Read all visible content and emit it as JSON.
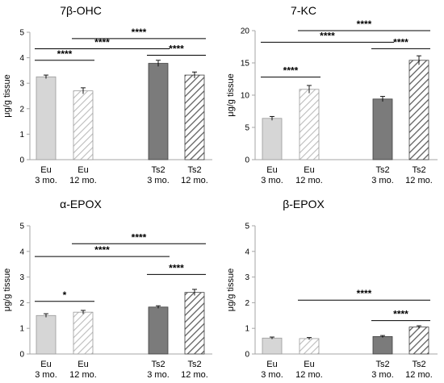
{
  "figure": {
    "bar_fill": "#d6d6d6",
    "bar_fill_ts2": "#7b7b7b",
    "hatch_light": "#bdbdbd",
    "hatch_dark": "#5e5e5e",
    "axis_color": "#a6a6a6",
    "line_color": "#000000"
  },
  "chart_data": [
    {
      "type": "bar",
      "title": "7β-OHC",
      "ylabel": "μg/g tissue",
      "ylim": [
        0,
        5
      ],
      "yticks": [
        "0",
        "1",
        "2",
        "3",
        "4",
        "5"
      ],
      "categories": [
        [
          "Eu",
          "3 mo."
        ],
        [
          "Eu",
          "12 mo."
        ],
        [
          "Ts2",
          "3 mo."
        ],
        [
          "Ts2",
          "12 mo."
        ]
      ],
      "values": [
        3.25,
        2.7,
        3.78,
        3.32
      ],
      "errors": [
        0.07,
        0.12,
        0.12,
        0.12
      ],
      "significance": [
        {
          "from": 0,
          "to": 1,
          "y": 3.9,
          "label": "****"
        },
        {
          "from": 0,
          "to": 2,
          "y": 4.35,
          "label": "****"
        },
        {
          "from": 1,
          "to": 3,
          "y": 4.75,
          "label": "****"
        },
        {
          "from": 2,
          "to": 3,
          "y": 4.1,
          "label": "****"
        }
      ]
    },
    {
      "type": "bar",
      "title": "7-KC",
      "ylabel": "μg/g tissue",
      "ylim": [
        0,
        20
      ],
      "yticks": [
        "0",
        "5",
        "10",
        "15",
        "20"
      ],
      "categories": [
        [
          "Eu",
          "3 mo."
        ],
        [
          "Eu",
          "12 mo."
        ],
        [
          "Ts2",
          "3 mo."
        ],
        [
          "Ts2",
          "12 mo."
        ]
      ],
      "values": [
        6.4,
        10.9,
        9.4,
        15.4
      ],
      "errors": [
        0.3,
        0.6,
        0.4,
        0.7
      ],
      "significance": [
        {
          "from": 0,
          "to": 1,
          "y": 12.8,
          "label": "****"
        },
        {
          "from": 0,
          "to": 2,
          "y": 18.2,
          "label": "****"
        },
        {
          "from": 1,
          "to": 3,
          "y": 20.0,
          "label": "****"
        },
        {
          "from": 2,
          "to": 3,
          "y": 17.2,
          "label": "****"
        }
      ]
    },
    {
      "type": "bar",
      "title": "α-EPOX",
      "ylabel": "μg/g tissue",
      "ylim": [
        0,
        5
      ],
      "yticks": [
        "0",
        "1",
        "2",
        "3",
        "4",
        "5"
      ],
      "categories": [
        [
          "Eu",
          "3 mo."
        ],
        [
          "Eu",
          "12 mo."
        ],
        [
          "Ts2",
          "3 mo."
        ],
        [
          "Ts2",
          "12 mo."
        ]
      ],
      "values": [
        1.5,
        1.63,
        1.83,
        2.4
      ],
      "errors": [
        0.07,
        0.07,
        0.05,
        0.12
      ],
      "significance": [
        {
          "from": 0,
          "to": 1,
          "y": 2.05,
          "label": "*"
        },
        {
          "from": 0,
          "to": 2,
          "y": 3.8,
          "label": "****"
        },
        {
          "from": 1,
          "to": 3,
          "y": 4.3,
          "label": "****"
        },
        {
          "from": 2,
          "to": 3,
          "y": 3.1,
          "label": "****"
        }
      ]
    },
    {
      "type": "bar",
      "title": "β-EPOX",
      "ylabel": "μg/g tissue",
      "ylim": [
        0,
        5
      ],
      "yticks": [
        "0",
        "1",
        "2",
        "3",
        "4",
        "5"
      ],
      "categories": [
        [
          "Eu",
          "3 mo."
        ],
        [
          "Eu",
          "12 mo."
        ],
        [
          "Ts2",
          "3 mo."
        ],
        [
          "Ts2",
          "12 mo."
        ]
      ],
      "values": [
        0.62,
        0.6,
        0.68,
        1.05
      ],
      "errors": [
        0.04,
        0.04,
        0.04,
        0.05
      ],
      "significance": [
        {
          "from": 1,
          "to": 3,
          "y": 2.1,
          "label": "****"
        },
        {
          "from": 2,
          "to": 3,
          "y": 1.3,
          "label": "****"
        }
      ]
    }
  ]
}
